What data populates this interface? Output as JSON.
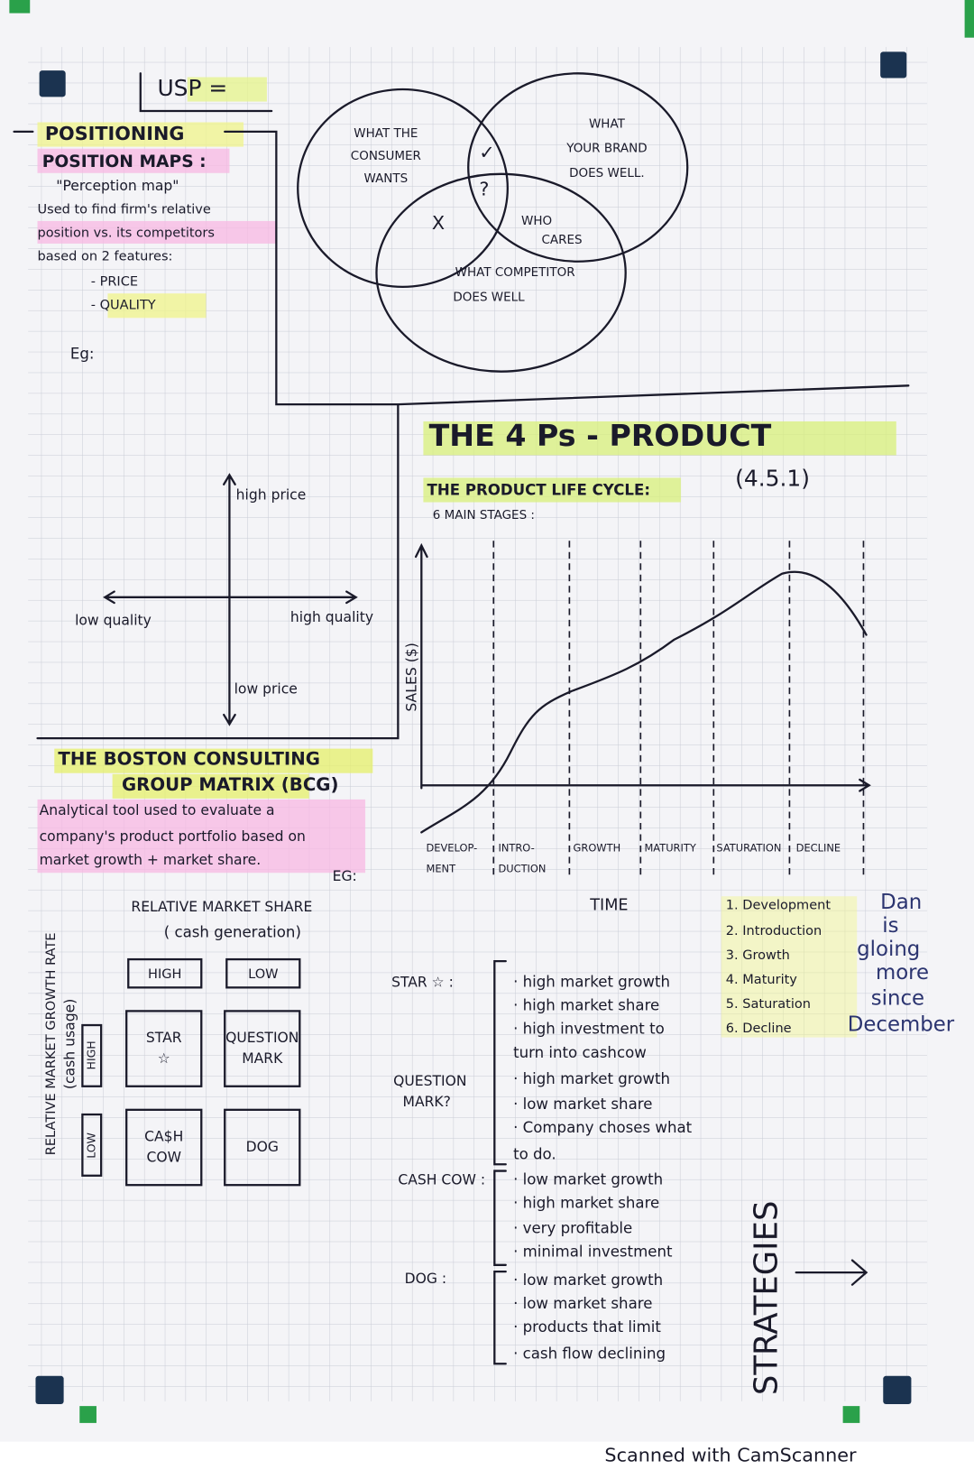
{
  "usp": {
    "label": "USP =",
    "consumer_wants": [
      "WHAT THE",
      "CONSUMER",
      "WANTS"
    ],
    "brand_does_well": [
      "WHAT",
      "YOUR BRAND",
      "DOES WELL."
    ],
    "competitor_does_well": [
      "WHAT COMPETITOR",
      "DOES WELL"
    ],
    "who_cares": [
      "WHO",
      "CARES"
    ],
    "marks": [
      "✓",
      "?",
      "X"
    ]
  },
  "positioning": {
    "title": "POSITIONING",
    "subtitle": "POSITION MAPS :",
    "alias": "\"Perception map\"",
    "description": [
      "Used to find firm's relative",
      "position vs. its competitors",
      "based on 2 features:"
    ],
    "features": [
      "- PRICE",
      "- QUALITY"
    ],
    "example": "Eg:",
    "map": {
      "top": "high price",
      "bottom": "low price",
      "left": "low quality",
      "right": "high quality"
    }
  },
  "product": {
    "title": "THE 4 Ps - PRODUCT",
    "plc_title": "THE PRODUCT LIFE CYCLE:",
    "ref": "(4.5.1)",
    "stages_note": "6 MAIN STAGES :",
    "y_label": "SALES ($)",
    "x_label": "TIME",
    "stages": [
      [
        "DEVELOP-",
        "MENT"
      ],
      [
        "INTRO-",
        "DUCTION"
      ],
      [
        "GROWTH"
      ],
      [
        "MATURITY"
      ],
      [
        "SATURATION"
      ],
      [
        "DECLINE"
      ]
    ],
    "list": [
      "1. Development",
      "2. Introduction",
      "3. Growth",
      "4. Maturity",
      "5. Saturation",
      "6. Decline"
    ],
    "note": [
      "Dan",
      "is",
      "gloing",
      "more",
      "since",
      "December"
    ]
  },
  "bcg": {
    "title": [
      "THE BOSTON CONSULTING",
      "GROUP MATRIX (BCG)"
    ],
    "description": [
      "Analytical tool used to evaluate a",
      "company's product portfolio based on",
      "market growth + market share."
    ],
    "example": "EG:",
    "x_axis": "RELATIVE MARKET SHARE",
    "x_axis_sub": "( cash generation)",
    "y_axis": "RELATIVE MARKET GROWTH RATE",
    "y_axis_sub": "(cash usage)",
    "col_labels": [
      "HIGH",
      "LOW"
    ],
    "row_labels": [
      "HIGH",
      "LOW"
    ],
    "cells": [
      [
        "STAR",
        "☆"
      ],
      [
        "QUESTION",
        "MARK"
      ],
      [
        "CA$H",
        "COW"
      ],
      [
        "DOG"
      ]
    ]
  },
  "strategies": {
    "title": "STRATEGIES",
    "items": [
      {
        "label": [
          "STAR ☆ :"
        ],
        "points": [
          "· high market growth",
          "· high market share",
          "· high investment to",
          "turn into cashcow"
        ]
      },
      {
        "label": [
          "QUESTION",
          "MARK?"
        ],
        "points": [
          "· high market growth",
          "· low market share",
          "· Company choses what",
          "to do."
        ]
      },
      {
        "label": [
          "CASH COW :"
        ],
        "points": [
          "· low market growth",
          "· high market share",
          "· very profitable",
          "· minimal investment"
        ]
      },
      {
        "label": [
          "DOG :"
        ],
        "points": [
          "· low market growth",
          "· low market share",
          "· products that limit",
          "· cash flow declining"
        ]
      }
    ]
  },
  "footer": "Scanned with CamScanner"
}
